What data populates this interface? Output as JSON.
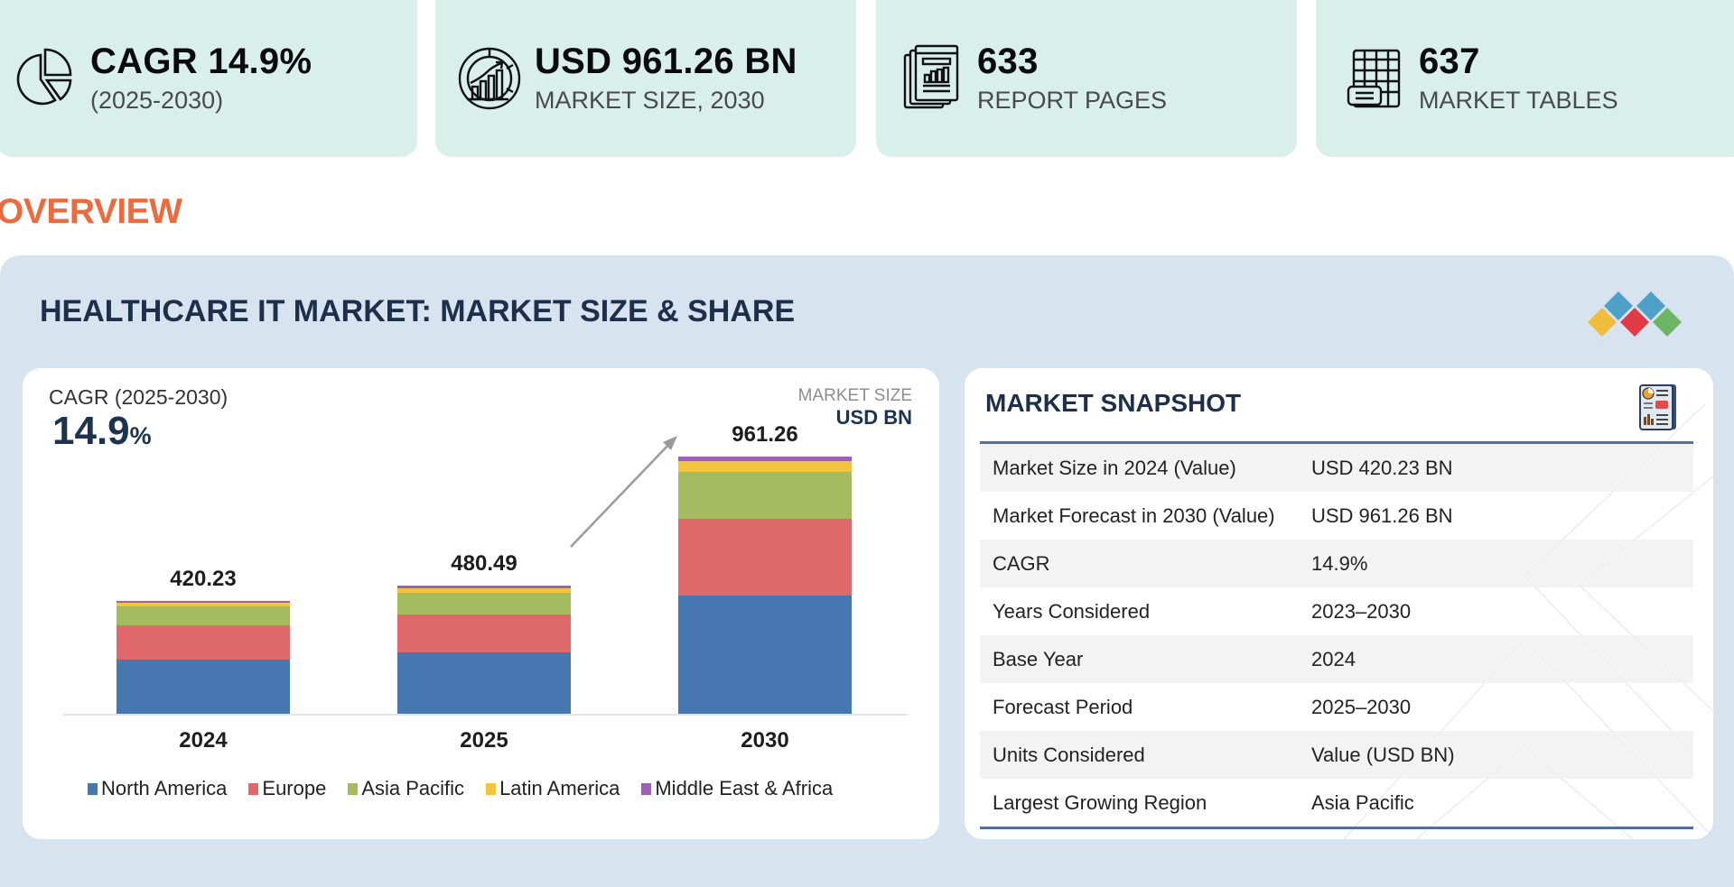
{
  "stats": [
    {
      "icon": "pie-chart-icon",
      "value": "CAGR 14.9%",
      "label": "(2025-2030)"
    },
    {
      "icon": "market-growth-icon",
      "value": "USD 961.26 BN",
      "label": "MARKET SIZE, 2030"
    },
    {
      "icon": "report-pages-icon",
      "value": "633",
      "label": "REPORT PAGES"
    },
    {
      "icon": "market-tables-icon",
      "value": "637",
      "label": "MARKET TABLES"
    }
  ],
  "section_title": "OVERVIEW",
  "panel": {
    "title": "HEALTHCARE IT MARKET: MARKET SIZE & SHARE"
  },
  "chart_card": {
    "cagr_label": "CAGR (2025-2030)",
    "cagr_number": "14.9",
    "cagr_unit": "%",
    "unit_line1": "MARKET SIZE",
    "unit_line2": "USD BN"
  },
  "colors": {
    "accent_orange": "#ec6b3e",
    "stat_bg": "#d9efea",
    "panel_bg": "#d7e4ef",
    "title_navy": "#1d2f4a",
    "north_america": "#4777b1",
    "europe": "#df686b",
    "asia_pacific": "#a4bb60",
    "latin_america": "#f3c53f",
    "middle_east_africa": "#9b62b1"
  },
  "chart_data": {
    "type": "bar",
    "stacked": true,
    "title": "HEALTHCARE IT MARKET: MARKET SIZE & SHARE",
    "xlabel": "",
    "ylabel": "MARKET SIZE (USD BN)",
    "categories": [
      "2024",
      "2025",
      "2030"
    ],
    "totals": [
      420.23,
      480.49,
      961.26
    ],
    "total_labels": [
      "420.23",
      "480.49",
      "961.26"
    ],
    "series": [
      {
        "name": "North America",
        "color": "#4777b1",
        "values": [
          202,
          229,
          442
        ]
      },
      {
        "name": "Europe",
        "color": "#df686b",
        "values": [
          128,
          142,
          287
        ]
      },
      {
        "name": "Asia Pacific",
        "color": "#a4bb60",
        "values": [
          73,
          81,
          175
        ]
      },
      {
        "name": "Latin America",
        "color": "#f3c53f",
        "values": [
          12,
          17,
          40
        ]
      },
      {
        "name": "Middle East & Africa",
        "color": "#9b62b1",
        "values": [
          5.23,
          11.49,
          17.26
        ]
      }
    ],
    "ylim": [
      0,
      1000
    ],
    "grid": false,
    "legend_position": "bottom",
    "annotations": [
      "CAGR (2025-2030) 14.9%",
      "arrow from 2025 bar to 2030 bar"
    ]
  },
  "snapshot": {
    "title": "MARKET SNAPSHOT",
    "rows": [
      {
        "key": "Market Size in 2024 (Value)",
        "value": "USD 420.23 BN"
      },
      {
        "key": "Market Forecast in 2030 (Value)",
        "value": "USD 961.26 BN"
      },
      {
        "key": "CAGR",
        "value": "14.9%"
      },
      {
        "key": "Years Considered",
        "value": "2023–2030"
      },
      {
        "key": "Base Year",
        "value": "2024"
      },
      {
        "key": "Forecast Period",
        "value": "2025–2030"
      },
      {
        "key": "Units Considered",
        "value": "Value (USD BN)"
      },
      {
        "key": "Largest Growing Region",
        "value": "Asia Pacific"
      }
    ]
  }
}
